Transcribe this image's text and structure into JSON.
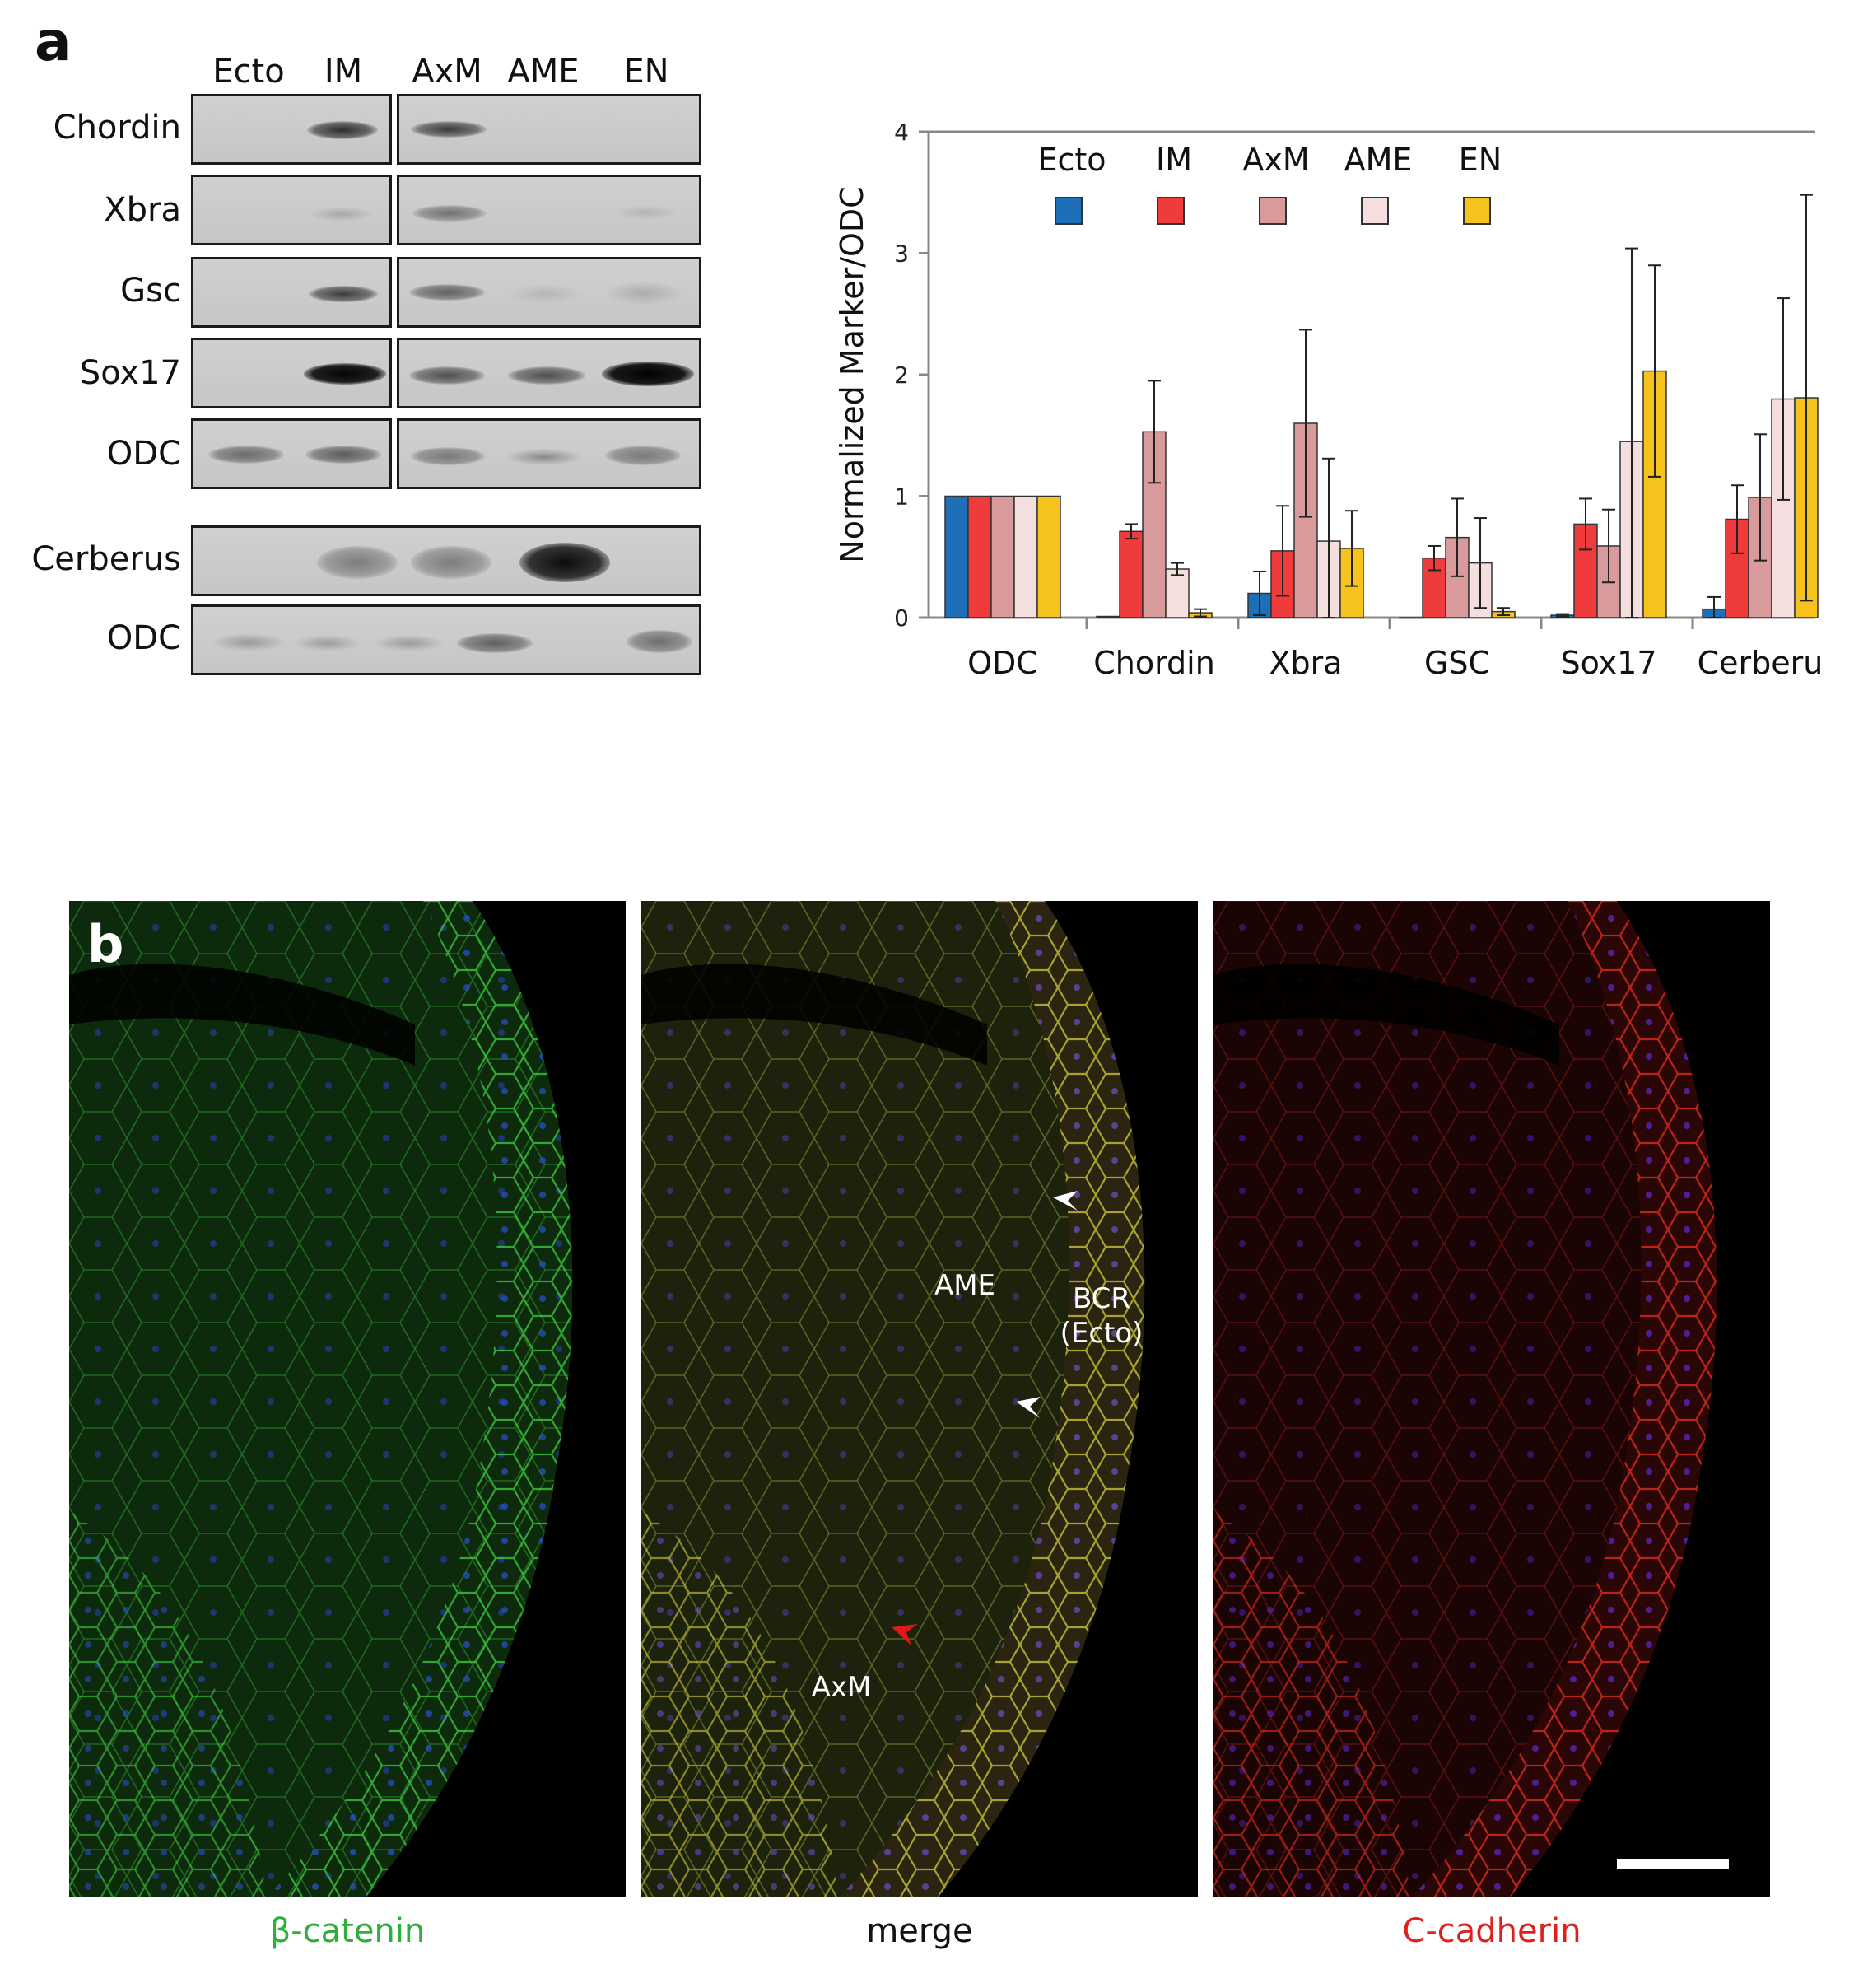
{
  "panel_a": {
    "letter": "a",
    "blot": {
      "lane_labels": [
        "Ecto",
        "IM",
        "AxM",
        "AME",
        "EN"
      ],
      "row_labels": [
        "Chordin",
        "Xbra",
        "Gsc",
        "Sox17",
        "ODC",
        "Cerberus",
        "ODC"
      ]
    }
  },
  "chart_data": {
    "type": "bar",
    "ylabel": "Normalized Marker/ODC",
    "xlabel": "",
    "ylim": [
      0,
      4
    ],
    "yticks": [
      "0",
      "1",
      "2",
      "3",
      "4"
    ],
    "categories": [
      "ODC",
      "Chordin",
      "Xbra",
      "GSC",
      "Sox17",
      "Cerberu"
    ],
    "legend_position": "top",
    "series": [
      {
        "name": "Ecto",
        "color": "#1f6fb8",
        "values": [
          1.0,
          0.01,
          0.2,
          0.0,
          0.02,
          0.07
        ],
        "err": [
          0,
          0,
          0.18,
          0,
          0.01,
          0.1
        ]
      },
      {
        "name": "IM",
        "color": "#ef3b3b",
        "values": [
          1.0,
          0.71,
          0.55,
          0.49,
          0.77,
          0.81
        ],
        "err": [
          0,
          0.06,
          0.37,
          0.1,
          0.21,
          0.28
        ]
      },
      {
        "name": "AxM",
        "color": "#d89a9a",
        "values": [
          1.0,
          1.53,
          1.6,
          0.66,
          0.59,
          0.99
        ],
        "err": [
          0,
          0.42,
          0.77,
          0.32,
          0.3,
          0.52
        ]
      },
      {
        "name": "AME",
        "color": "#f5dede",
        "values": [
          1.0,
          0.4,
          0.63,
          0.45,
          1.45,
          1.8
        ],
        "err": [
          0,
          0.05,
          0.68,
          0.37,
          1.59,
          0.83
        ]
      },
      {
        "name": "EN",
        "color": "#f6c21c",
        "values": [
          1.0,
          0.04,
          0.57,
          0.05,
          2.03,
          1.81
        ],
        "err": [
          0,
          0.03,
          0.31,
          0.03,
          0.87,
          1.67
        ]
      }
    ]
  },
  "panel_b": {
    "letter": "b",
    "captions": {
      "left": "β-catenin",
      "middle": "merge",
      "right": "C-cadherin"
    },
    "annotations": {
      "ame": "AME",
      "bcr_line1": "BCR",
      "bcr_line2": "(Ecto)",
      "axm": "AxM"
    },
    "caption_colors": {
      "left": "#2fae3a",
      "middle": "#111111",
      "right": "#e0201c"
    }
  }
}
